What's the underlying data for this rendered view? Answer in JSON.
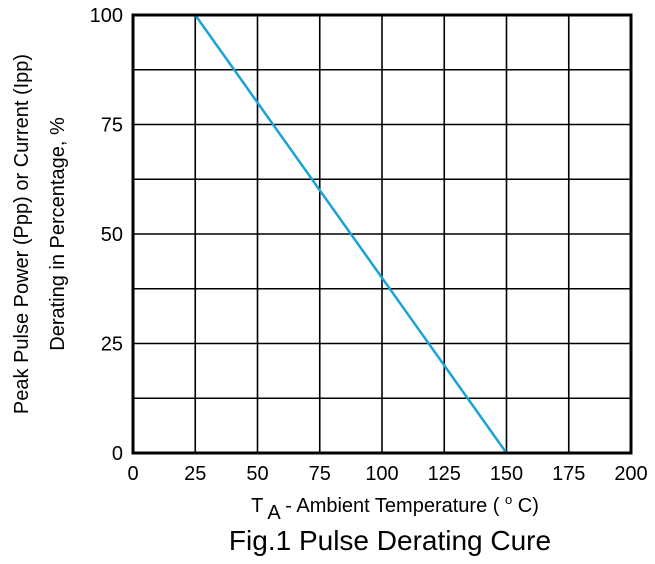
{
  "chart_data": {
    "type": "line",
    "x_ticks": [
      "0",
      "25",
      "50",
      "75",
      "100",
      "125",
      "150",
      "175",
      "200"
    ],
    "y_ticks": [
      "0",
      "25",
      "50",
      "75",
      "100"
    ],
    "xlim": [
      0,
      200
    ],
    "ylim": [
      0,
      100
    ],
    "x_grid_step": 25,
    "y_grid_step": 12.5,
    "grid": true,
    "series": [
      {
        "x": [
          25,
          150
        ],
        "y": [
          100,
          0
        ],
        "color": "#1aa3d9"
      }
    ],
    "xlabel": {
      "main": "T",
      "subscript": "A",
      "rest": " - Ambient Temperature (",
      "superscript": "o",
      "unit_end": "C)"
    },
    "ylabel": {
      "line1": "Peak Pulse Power (Ppp) or Current (Ipp)",
      "line2": "Derating in Percentage, %"
    },
    "caption": "Fig.1 Pulse Derating Cure"
  }
}
